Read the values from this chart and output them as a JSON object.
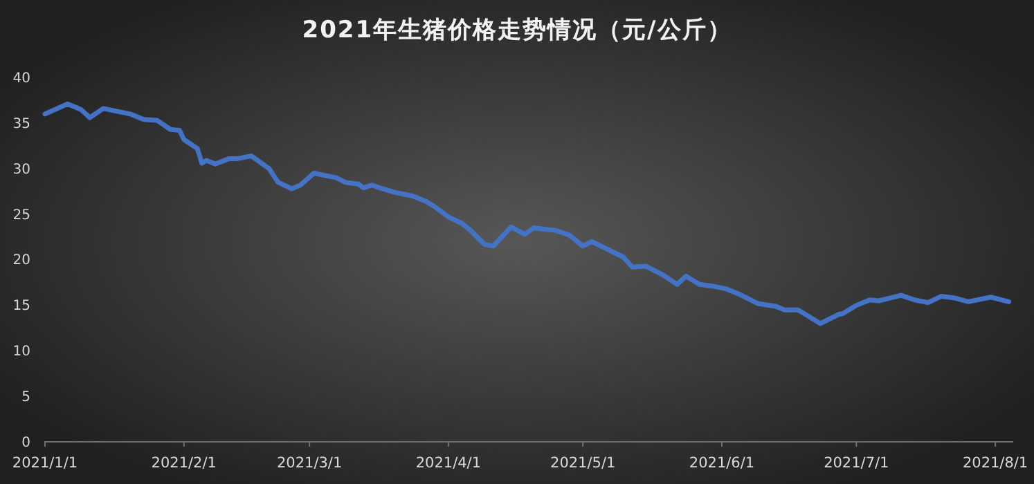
{
  "chart_data": {
    "type": "line",
    "title": "2021年生猪价格走势情况（元/公斤）",
    "x": [
      "2021-01-01",
      "2021-01-06",
      "2021-01-09",
      "2021-01-11",
      "2021-01-14",
      "2021-01-17",
      "2021-01-20",
      "2021-01-23",
      "2021-01-26",
      "2021-01-29",
      "2021-01-31",
      "2021-02-01",
      "2021-02-04",
      "2021-02-05",
      "2021-02-06",
      "2021-02-08",
      "2021-02-11",
      "2021-02-13",
      "2021-02-16",
      "2021-02-20",
      "2021-02-22",
      "2021-02-25",
      "2021-02-27",
      "2021-03-02",
      "2021-03-04",
      "2021-03-07",
      "2021-03-09",
      "2021-03-12",
      "2021-03-13",
      "2021-03-15",
      "2021-03-16",
      "2021-03-20",
      "2021-03-24",
      "2021-03-27",
      "2021-03-29",
      "2021-04-01",
      "2021-04-04",
      "2021-04-06",
      "2021-04-09",
      "2021-04-11",
      "2021-04-15",
      "2021-04-18",
      "2021-04-20",
      "2021-04-25",
      "2021-04-28",
      "2021-05-01",
      "2021-05-03",
      "2021-05-10",
      "2021-05-12",
      "2021-05-15",
      "2021-05-19",
      "2021-05-22",
      "2021-05-24",
      "2021-05-27",
      "2021-05-30",
      "2021-06-02",
      "2021-06-05",
      "2021-06-09",
      "2021-06-13",
      "2021-06-15",
      "2021-06-18",
      "2021-06-20",
      "2021-06-23",
      "2021-06-27",
      "2021-06-28",
      "2021-07-01",
      "2021-07-04",
      "2021-07-06",
      "2021-07-11",
      "2021-07-14",
      "2021-07-17",
      "2021-07-20",
      "2021-07-23",
      "2021-07-26",
      "2021-07-31",
      "2021-08-04"
    ],
    "series": [
      {
        "color": "#4472c4",
        "values": [
          35.9,
          37.0,
          36.4,
          35.5,
          36.5,
          36.2,
          35.9,
          35.3,
          35.2,
          34.2,
          34.1,
          33.1,
          32.1,
          30.5,
          30.8,
          30.4,
          31.0,
          31.0,
          31.3,
          29.9,
          28.4,
          27.7,
          28.1,
          29.4,
          29.2,
          28.9,
          28.4,
          28.2,
          27.8,
          28.1,
          27.9,
          27.3,
          26.9,
          26.3,
          25.7,
          24.6,
          23.9,
          23.1,
          21.6,
          21.4,
          23.5,
          22.7,
          23.4,
          23.1,
          22.6,
          21.4,
          21.9,
          20.2,
          19.1,
          19.2,
          18.2,
          17.2,
          18.1,
          17.2,
          17.0,
          16.7,
          16.1,
          15.1,
          14.8,
          14.4,
          14.4,
          13.8,
          12.9,
          13.9,
          14.0,
          14.9,
          15.5,
          15.4,
          16.0,
          15.5,
          15.2,
          15.9,
          15.7,
          15.3,
          15.8,
          15.3
        ]
      }
    ],
    "xlim": [
      "2021-01-01",
      "2021-08-05"
    ],
    "xticks": [
      {
        "value": "2021-01-01",
        "label": "2021/1/1"
      },
      {
        "value": "2021-02-01",
        "label": "2021/2/1"
      },
      {
        "value": "2021-03-01",
        "label": "2021/3/1"
      },
      {
        "value": "2021-04-01",
        "label": "2021/4/1"
      },
      {
        "value": "2021-05-01",
        "label": "2021/5/1"
      },
      {
        "value": "2021-06-01",
        "label": "2021/6/1"
      },
      {
        "value": "2021-07-01",
        "label": "2021/7/1"
      },
      {
        "value": "2021-08-01",
        "label": "2021/8/1"
      }
    ],
    "ylim": [
      0,
      40
    ],
    "yticks": [
      0,
      5,
      10,
      15,
      20,
      25,
      30,
      35,
      40
    ],
    "grid": false,
    "marker": "none",
    "line_style": "solid"
  }
}
